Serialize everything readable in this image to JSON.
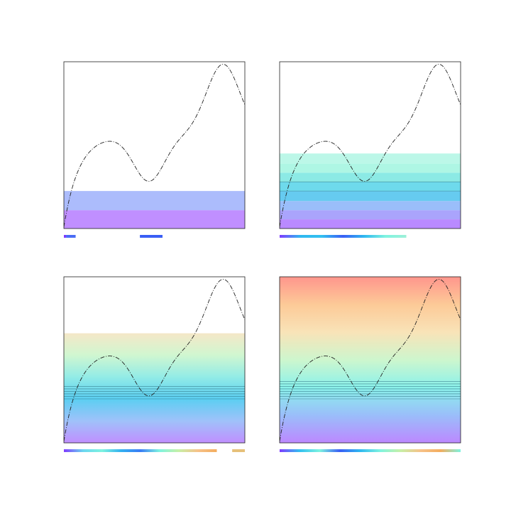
{
  "chart_data": [
    {
      "type": "area",
      "curve": "dash-dot",
      "bands": [
        {
          "from": 0,
          "to": 0.22,
          "color": "#b57bff"
        },
        {
          "from": 0.22,
          "to": 0.45,
          "color": "#9db0fb"
        }
      ],
      "bands_alpha": 0.85,
      "band_lines": [],
      "strip": [
        {
          "from": 0,
          "to": 0.012,
          "color": "#7f3cff"
        },
        {
          "from": 0.012,
          "to": 0.065,
          "color": "#4a6cf5"
        },
        {
          "from": 0.42,
          "to": 0.545,
          "color": "#3a5ef5"
        }
      ]
    },
    {
      "type": "area",
      "curve": "dash-dot",
      "bands": [
        {
          "from": 0,
          "to": 0.11,
          "color": "#b17dff"
        },
        {
          "from": 0.11,
          "to": 0.22,
          "color": "#a19afc"
        },
        {
          "from": 0.22,
          "to": 0.33,
          "color": "#8fb7f9"
        },
        {
          "from": 0.33,
          "to": 0.45,
          "color": "#55c5ee"
        },
        {
          "from": 0.45,
          "to": 0.56,
          "color": "#5ed6ea"
        },
        {
          "from": 0.56,
          "to": 0.67,
          "color": "#7fe8e2"
        },
        {
          "from": 0.67,
          "to": 0.78,
          "color": "#a5f5e1"
        },
        {
          "from": 0.78,
          "to": 0.9,
          "color": "#b5f6e6"
        }
      ],
      "bands_alpha": 0.9,
      "band_lines": [
        0.45,
        0.56
      ],
      "strip": [
        {
          "from": 0,
          "to": 0.7,
          "gradient": [
            "#7f3cff",
            "#2fb8f0",
            "#33c0f0",
            "#3a5ef5",
            "#2fb8f0",
            "#7ff3e0",
            "#9ef0d8"
          ]
        }
      ]
    },
    {
      "type": "area",
      "curve": "dash-dot",
      "gradient_bands": {
        "from": 0,
        "to": 1.32,
        "stops": [
          "#b57bff",
          "#8fb7f9",
          "#3fc6ef",
          "#7fe8e2",
          "#c8f5c8",
          "#f3e3be"
        ]
      },
      "bands_alpha": 0.85,
      "band_lines": [
        0.53,
        0.56,
        0.59,
        0.62,
        0.65,
        0.68
      ],
      "strip": [
        {
          "from": 0,
          "to": 0.845,
          "gradient": [
            "#7f3cff",
            "#6cd6f0",
            "#7ff3e0",
            "#33b0f0",
            "#3a7cf5",
            "#7ff3e0",
            "#c6f0a8",
            "#f6c28a",
            "#f3ad5f"
          ]
        },
        {
          "from": 0.93,
          "to": 1.0,
          "color": "#e6c07a"
        }
      ]
    },
    {
      "type": "area",
      "curve": "dash-dot",
      "gradient_bands": {
        "from": 0,
        "to": 2.0,
        "stops": [
          "#b57bff",
          "#8fb7f9",
          "#7ff0e8",
          "#c8f5c8",
          "#f8e0b0",
          "#fcc48c",
          "#ff8a80"
        ]
      },
      "bands_alpha": 0.9,
      "band_lines": [
        0.53,
        0.56,
        0.59,
        0.62,
        0.65,
        0.68,
        0.71,
        0.74
      ],
      "strip": [
        {
          "from": 0,
          "to": 1.0,
          "gradient": [
            "#7f3cff",
            "#33c0f0",
            "#7ff3e0",
            "#3a5ef5",
            "#2fb8f0",
            "#7ff3e0",
            "#c6f0a8",
            "#f6c28a",
            "#f3ad5f",
            "#7ff3e0"
          ]
        }
      ]
    }
  ]
}
